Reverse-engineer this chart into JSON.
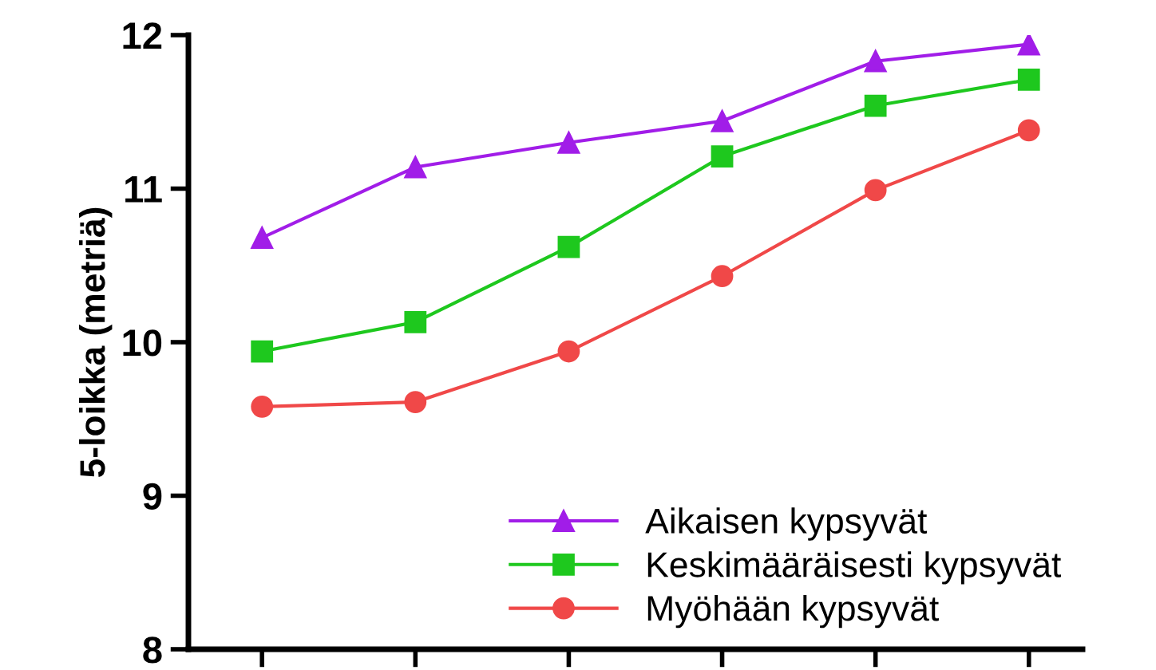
{
  "chart_data": {
    "type": "line",
    "ylabel": "5-loikka (metriä)",
    "categories": [
      null,
      null,
      null,
      null,
      null,
      null
    ],
    "series": [
      {
        "name": "Aikaisen kypsyvät",
        "color": "#a11de8",
        "marker": "triangle",
        "values": [
          10.68,
          11.14,
          11.3,
          11.44,
          11.83,
          11.94
        ]
      },
      {
        "name": "Keskimääräisesti kypsyvät",
        "color": "#1ec81e",
        "marker": "square",
        "values": [
          9.94,
          10.13,
          10.62,
          11.21,
          11.54,
          11.71
        ]
      },
      {
        "name": "Myöhään kypsyvät",
        "color": "#f04848",
        "marker": "circle",
        "values": [
          9.58,
          9.61,
          9.94,
          10.43,
          10.99,
          11.38
        ]
      }
    ],
    "ylim": [
      8,
      12
    ],
    "yticks": [
      8,
      9,
      10,
      11,
      12
    ],
    "tick_labels": "y",
    "legend": "bottom right",
    "grid": false,
    "line_style": "solid"
  }
}
